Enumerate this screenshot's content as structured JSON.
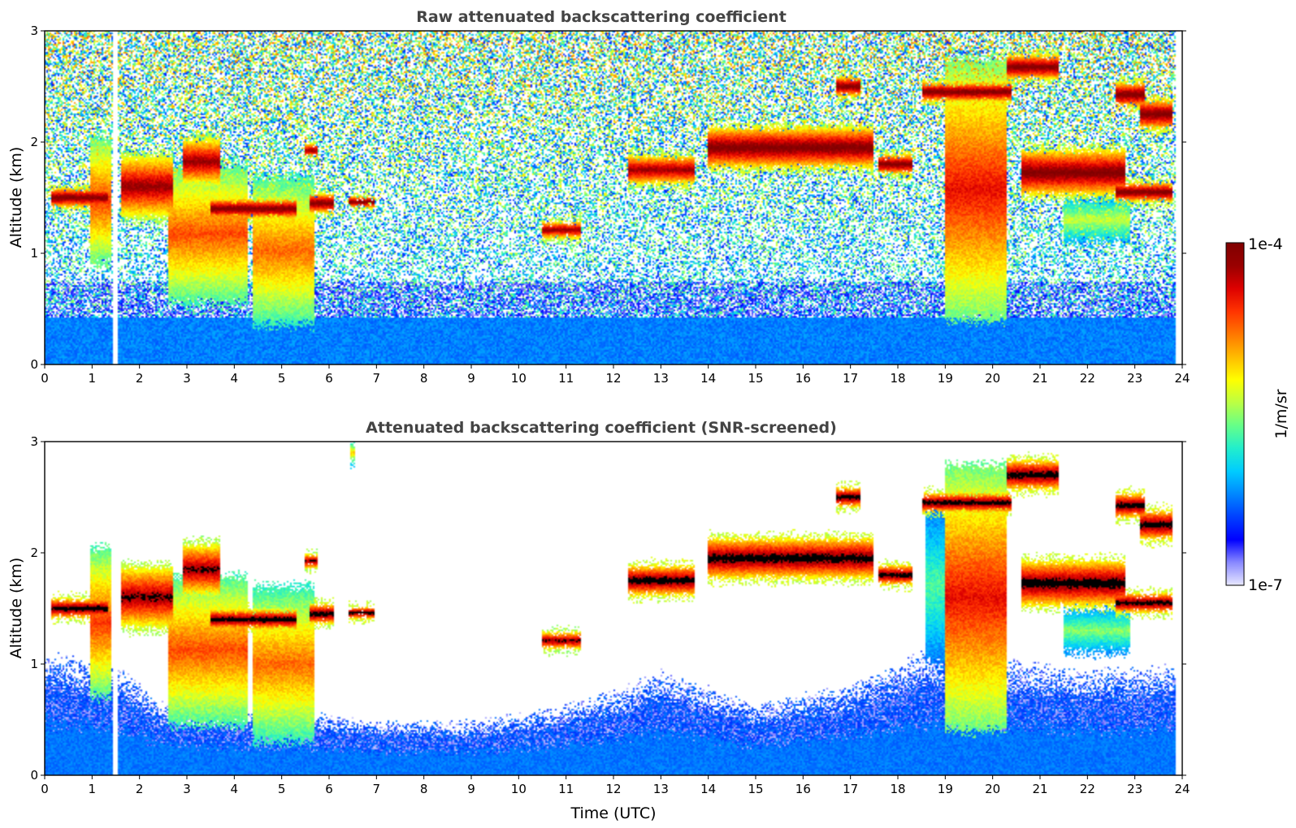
{
  "chart_data": [
    {
      "type": "heatmap",
      "title": "Raw attenuated backscattering coefficient",
      "xlabel": "",
      "ylabel": "Altitude (km)",
      "xlim": [
        0,
        24
      ],
      "ylim": [
        0,
        3
      ],
      "x_ticks": [
        "0",
        "1",
        "2",
        "3",
        "4",
        "5",
        "6",
        "7",
        "8",
        "9",
        "10",
        "11",
        "12",
        "13",
        "14",
        "15",
        "16",
        "17",
        "18",
        "19",
        "20",
        "21",
        "22",
        "23",
        "24"
      ],
      "y_ticks": [
        "0",
        "1",
        "2",
        "3"
      ],
      "data_end_time": 23.85,
      "data_gap": [
        1.45,
        1.55
      ],
      "noise_level": 0.55,
      "background_layer": {
        "top_km": 0.42,
        "level": 0.22
      },
      "clouds": [
        {
          "t0": 0.15,
          "t1": 1.35,
          "base": 1.4,
          "top": 1.6,
          "level": 1.0
        },
        {
          "t0": 0.95,
          "t1": 1.4,
          "base": 0.9,
          "top": 2.05,
          "level": 0.8
        },
        {
          "t0": 1.6,
          "t1": 2.7,
          "base": 1.3,
          "top": 1.9,
          "level": 0.95
        },
        {
          "t0": 2.6,
          "t1": 4.3,
          "base": 0.55,
          "top": 1.8,
          "level": 0.78
        },
        {
          "t0": 2.9,
          "t1": 3.7,
          "base": 1.6,
          "top": 2.05,
          "level": 0.95
        },
        {
          "t0": 3.5,
          "t1": 5.3,
          "base": 1.3,
          "top": 1.5,
          "level": 1.0
        },
        {
          "t0": 4.4,
          "t1": 5.7,
          "base": 0.35,
          "top": 1.7,
          "level": 0.75
        },
        {
          "t0": 5.6,
          "t1": 6.1,
          "base": 1.35,
          "top": 1.55,
          "level": 1.0
        },
        {
          "t0": 5.5,
          "t1": 5.75,
          "base": 1.85,
          "top": 2.0,
          "level": 0.95
        },
        {
          "t0": 6.4,
          "t1": 6.95,
          "base": 1.4,
          "top": 1.52,
          "level": 1.0
        },
        {
          "t0": 10.5,
          "t1": 11.3,
          "base": 1.12,
          "top": 1.3,
          "level": 0.95
        },
        {
          "t0": 12.3,
          "t1": 13.7,
          "base": 1.6,
          "top": 1.9,
          "level": 0.95
        },
        {
          "t0": 14.0,
          "t1": 17.5,
          "base": 1.75,
          "top": 2.15,
          "level": 1.0
        },
        {
          "t0": 16.7,
          "t1": 17.2,
          "base": 2.4,
          "top": 2.6,
          "level": 1.0
        },
        {
          "t0": 17.6,
          "t1": 18.3,
          "base": 1.7,
          "top": 1.9,
          "level": 1.0
        },
        {
          "t0": 18.5,
          "t1": 20.4,
          "base": 2.35,
          "top": 2.55,
          "level": 1.0
        },
        {
          "t0": 19.0,
          "t1": 20.3,
          "base": 0.4,
          "top": 2.75,
          "level": 0.85
        },
        {
          "t0": 20.3,
          "t1": 21.4,
          "base": 2.55,
          "top": 2.8,
          "level": 1.0
        },
        {
          "t0": 20.6,
          "t1": 22.8,
          "base": 1.5,
          "top": 1.95,
          "level": 1.0
        },
        {
          "t0": 21.5,
          "t1": 22.9,
          "base": 1.1,
          "top": 1.5,
          "level": 0.55
        },
        {
          "t0": 22.6,
          "t1": 23.8,
          "base": 1.45,
          "top": 1.65,
          "level": 1.0
        },
        {
          "t0": 23.1,
          "t1": 23.8,
          "base": 2.1,
          "top": 2.4,
          "level": 1.0
        },
        {
          "t0": 22.6,
          "t1": 23.2,
          "base": 2.3,
          "top": 2.55,
          "level": 1.0
        }
      ]
    },
    {
      "type": "heatmap",
      "title": "Attenuated backscattering coefficient (SNR-screened)",
      "xlabel": "Time (UTC)",
      "ylabel": "Altitude (km)",
      "xlim": [
        0,
        24
      ],
      "ylim": [
        0,
        3
      ],
      "x_ticks": [
        "0",
        "1",
        "2",
        "3",
        "4",
        "5",
        "6",
        "7",
        "8",
        "9",
        "10",
        "11",
        "12",
        "13",
        "14",
        "15",
        "16",
        "17",
        "18",
        "19",
        "20",
        "21",
        "22",
        "23",
        "24"
      ],
      "y_ticks": [
        "0",
        "1",
        "2",
        "3"
      ],
      "data_end_time": 23.85,
      "data_gap": [
        1.45,
        1.55
      ],
      "screened": true,
      "saturated_color": "#000000",
      "surface_layer_top_km": [
        [
          0,
          0.95
        ],
        [
          1.5,
          0.85
        ],
        [
          2.5,
          0.55
        ],
        [
          4,
          0.5
        ],
        [
          5.5,
          0.5
        ],
        [
          7,
          0.42
        ],
        [
          9,
          0.42
        ],
        [
          10.5,
          0.5
        ],
        [
          12,
          0.65
        ],
        [
          13,
          0.8
        ],
        [
          15,
          0.55
        ],
        [
          17,
          0.7
        ],
        [
          18.5,
          0.95
        ],
        [
          20,
          0.9
        ],
        [
          22,
          0.8
        ],
        [
          23.85,
          0.85
        ]
      ],
      "clouds": [
        {
          "t0": 0.15,
          "t1": 1.35,
          "base": 1.4,
          "top": 1.6,
          "level": 1.0
        },
        {
          "t0": 0.95,
          "t1": 1.4,
          "base": 0.7,
          "top": 2.05,
          "level": 0.8
        },
        {
          "t0": 1.6,
          "t1": 2.7,
          "base": 1.3,
          "top": 1.9,
          "level": 0.95
        },
        {
          "t0": 2.6,
          "t1": 4.3,
          "base": 0.45,
          "top": 1.8,
          "level": 0.78
        },
        {
          "t0": 2.9,
          "t1": 3.7,
          "base": 1.6,
          "top": 2.1,
          "level": 0.95
        },
        {
          "t0": 3.5,
          "t1": 5.3,
          "base": 1.3,
          "top": 1.5,
          "level": 1.0
        },
        {
          "t0": 4.4,
          "t1": 5.7,
          "base": 0.3,
          "top": 1.7,
          "level": 0.75
        },
        {
          "t0": 5.6,
          "t1": 6.1,
          "base": 1.35,
          "top": 1.55,
          "level": 1.0
        },
        {
          "t0": 5.5,
          "t1": 5.75,
          "base": 1.85,
          "top": 2.0,
          "level": 0.95
        },
        {
          "t0": 6.4,
          "t1": 6.95,
          "base": 1.4,
          "top": 1.52,
          "level": 1.0
        },
        {
          "t0": 10.5,
          "t1": 11.3,
          "base": 1.12,
          "top": 1.3,
          "level": 0.95
        },
        {
          "t0": 12.3,
          "t1": 13.7,
          "base": 1.6,
          "top": 1.9,
          "level": 1.0
        },
        {
          "t0": 14.0,
          "t1": 17.5,
          "base": 1.75,
          "top": 2.15,
          "level": 1.0
        },
        {
          "t0": 16.7,
          "t1": 17.2,
          "base": 2.4,
          "top": 2.6,
          "level": 1.0
        },
        {
          "t0": 17.6,
          "t1": 18.3,
          "base": 1.7,
          "top": 1.9,
          "level": 1.0
        },
        {
          "t0": 18.5,
          "t1": 20.4,
          "base": 2.35,
          "top": 2.55,
          "level": 1.0
        },
        {
          "t0": 18.6,
          "t1": 19.1,
          "base": 1.0,
          "top": 2.4,
          "level": 0.45
        },
        {
          "t0": 19.0,
          "t1": 20.3,
          "base": 0.4,
          "top": 2.8,
          "level": 0.85
        },
        {
          "t0": 20.3,
          "t1": 21.4,
          "base": 2.55,
          "top": 2.85,
          "level": 1.0
        },
        {
          "t0": 20.6,
          "t1": 22.8,
          "base": 1.5,
          "top": 1.95,
          "level": 1.0
        },
        {
          "t0": 21.5,
          "t1": 22.9,
          "base": 1.1,
          "top": 1.5,
          "level": 0.5
        },
        {
          "t0": 22.6,
          "t1": 23.8,
          "base": 1.45,
          "top": 1.65,
          "level": 1.0
        },
        {
          "t0": 23.1,
          "t1": 23.8,
          "base": 2.1,
          "top": 2.4,
          "level": 1.0
        },
        {
          "t0": 22.6,
          "t1": 23.2,
          "base": 2.3,
          "top": 2.55,
          "level": 1.0
        },
        {
          "t0": 6.45,
          "t1": 6.55,
          "base": 2.8,
          "top": 3.0,
          "level": 0.65
        }
      ]
    }
  ],
  "colorbar": {
    "label": "1/m/sr",
    "min_label": "1e-7",
    "max_label": "1e-4",
    "scale": "log",
    "colormap": [
      "#e8e8ff",
      "#8888ff",
      "#0000ff",
      "#0040ff",
      "#0088ff",
      "#00ccff",
      "#22eecc",
      "#66ff88",
      "#bbff44",
      "#ffff00",
      "#ffbb00",
      "#ff7700",
      "#ff3300",
      "#dd0000",
      "#990000",
      "#800000"
    ]
  }
}
